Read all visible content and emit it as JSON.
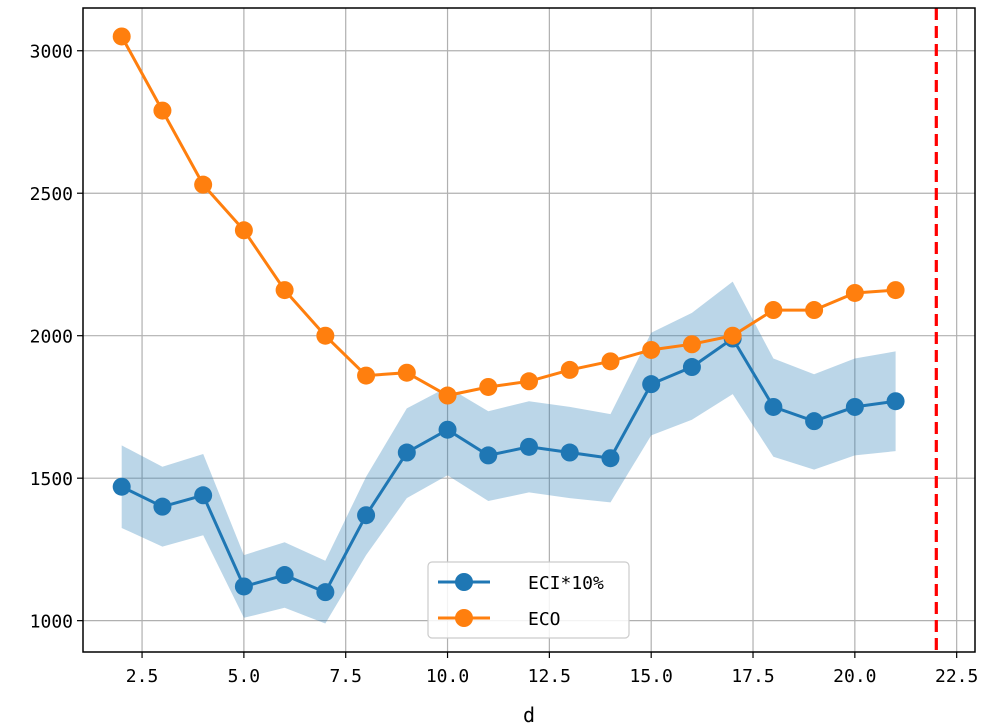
{
  "chart_data": {
    "type": "line",
    "xlabel": "d",
    "ylabel": "",
    "xlim": [
      1.05,
      22.95
    ],
    "ylim": [
      890,
      3150
    ],
    "xticks": [
      2.5,
      5.0,
      7.5,
      10.0,
      12.5,
      15.0,
      17.5,
      20.0,
      22.5
    ],
    "xtick_labels": [
      "2.5",
      "5.0",
      "7.5",
      "10.0",
      "12.5",
      "15.0",
      "17.5",
      "20.0",
      "22.5"
    ],
    "yticks": [
      1000,
      1500,
      2000,
      2500,
      3000
    ],
    "ytick_labels": [
      "1000",
      "1500",
      "2000",
      "2500",
      "3000"
    ],
    "grid": true,
    "legend_position": "lower-center",
    "x": [
      2,
      3,
      4,
      5,
      6,
      7,
      8,
      9,
      10,
      11,
      12,
      13,
      14,
      15,
      16,
      17,
      18,
      19,
      20,
      21
    ],
    "series": [
      {
        "name": "ECI*10%",
        "color": "#1f77b4",
        "band_color": "#1f77b4",
        "values": [
          1470,
          1400,
          1440,
          1120,
          1160,
          1100,
          1370,
          1590,
          1670,
          1580,
          1610,
          1590,
          1570,
          1830,
          1890,
          1990,
          1750,
          1700,
          1750,
          1770
        ],
        "lower": [
          1325,
          1260,
          1300,
          1010,
          1045,
          990,
          1230,
          1430,
          1510,
          1420,
          1450,
          1430,
          1415,
          1650,
          1705,
          1795,
          1575,
          1530,
          1580,
          1595
        ],
        "upper": [
          1615,
          1540,
          1585,
          1230,
          1275,
          1210,
          1505,
          1745,
          1820,
          1735,
          1770,
          1750,
          1725,
          2010,
          2080,
          2190,
          1920,
          1865,
          1920,
          1945
        ]
      },
      {
        "name": "ECO",
        "color": "#ff7f0e",
        "values": [
          3050,
          2790,
          2530,
          2370,
          2160,
          2000,
          1860,
          1870,
          1790,
          1820,
          1840,
          1880,
          1910,
          1950,
          1970,
          2000,
          2090,
          2090,
          2150,
          2160
        ]
      }
    ],
    "vline": {
      "x": 22,
      "color": "#ff0000",
      "style": "dashed"
    }
  }
}
